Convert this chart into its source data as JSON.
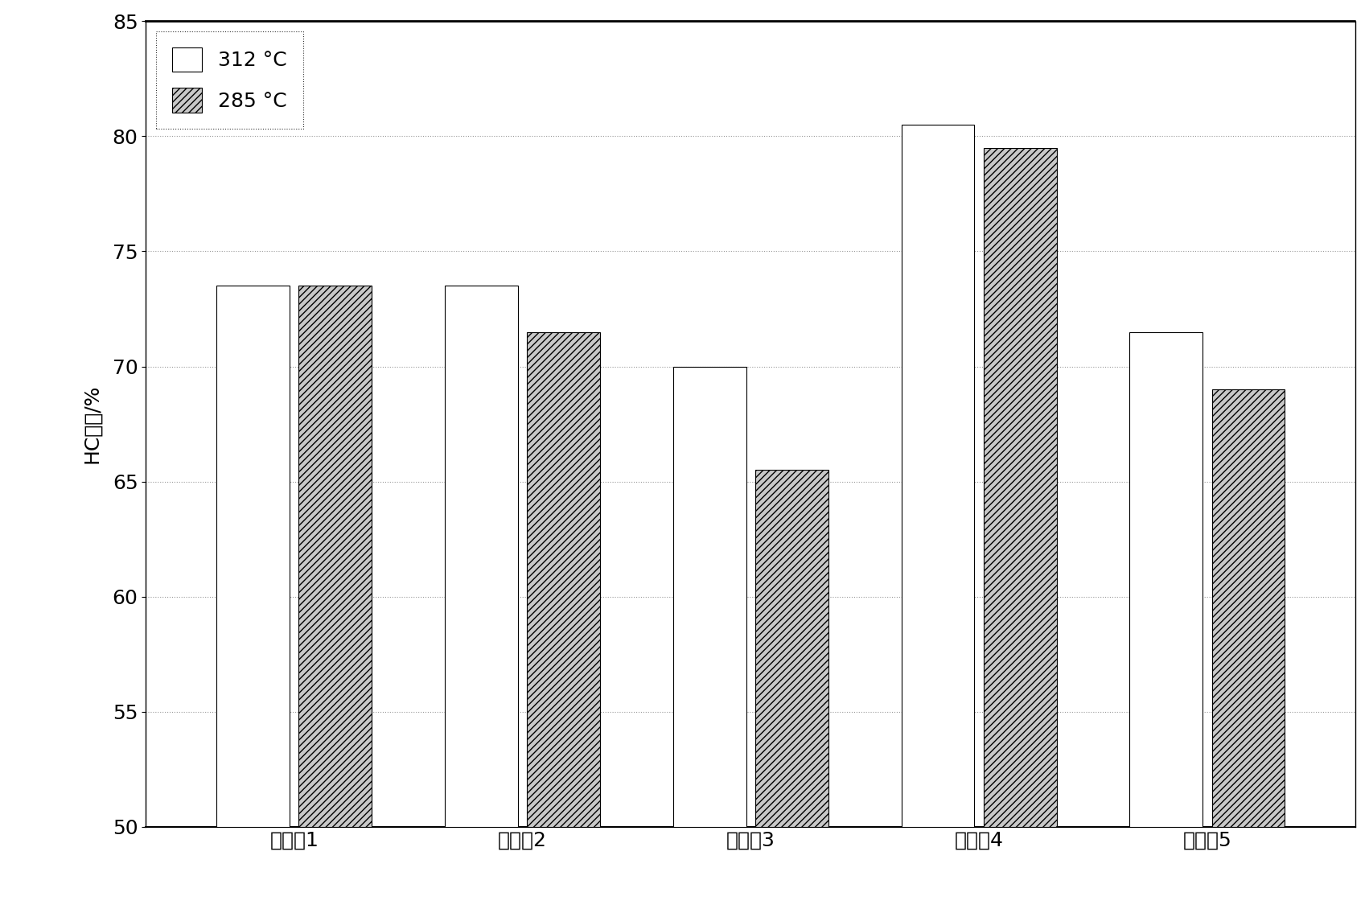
{
  "categories": [
    "实施例1",
    "实施例2",
    "实施例3",
    "实施例4",
    "实施例5"
  ],
  "series": [
    {
      "label": "312 °C",
      "values": [
        73.5,
        73.5,
        70.0,
        80.5,
        71.5
      ],
      "facecolor": "white",
      "edgecolor": "black",
      "hatch": ""
    },
    {
      "label": "285 °C",
      "values": [
        73.5,
        71.5,
        65.5,
        79.5,
        69.0
      ],
      "facecolor": "#c8c8c8",
      "edgecolor": "black",
      "hatch": "////"
    }
  ],
  "ylabel": "HC效率/%",
  "ylim": [
    50,
    85
  ],
  "ymin": 50,
  "yticks": [
    50,
    55,
    60,
    65,
    70,
    75,
    80,
    85
  ],
  "bar_width": 0.32,
  "background_color": "white",
  "legend_loc": "upper left",
  "grid_linestyle": "-.",
  "grid_color": "#999999",
  "tick_fontsize": 18,
  "label_fontsize": 18,
  "legend_fontsize": 18,
  "bar_spacing": 0.04
}
